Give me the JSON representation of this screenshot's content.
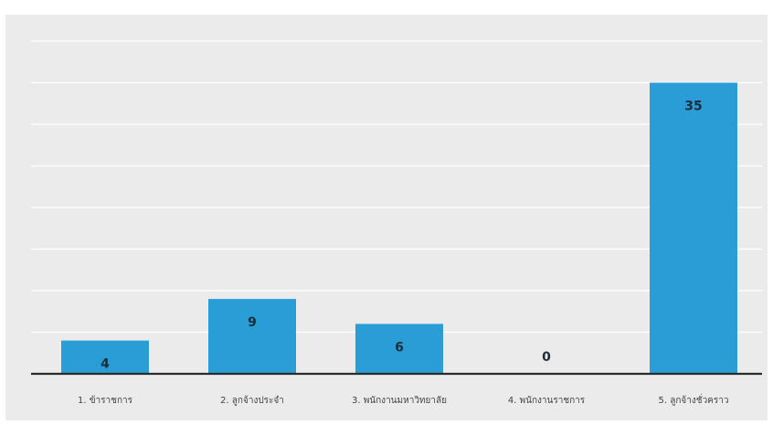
{
  "chart_data": {
    "type": "bar",
    "title": "",
    "xlabel": "",
    "ylabel": "",
    "categories": [
      "1. ข้าราชการ",
      "2. ลูกจ้างประจำ",
      "3. พนักงานมหาวิทยาลัย",
      "4. พนักงานราชการ",
      "5. ลูกจ้างชั่วคราว"
    ],
    "values": [
      4,
      9,
      6,
      0,
      35
    ],
    "ylim": [
      0,
      35
    ],
    "grid": true,
    "legend": "none",
    "bar_color": "#2a9dd6",
    "background_color": "#ebebeb"
  }
}
